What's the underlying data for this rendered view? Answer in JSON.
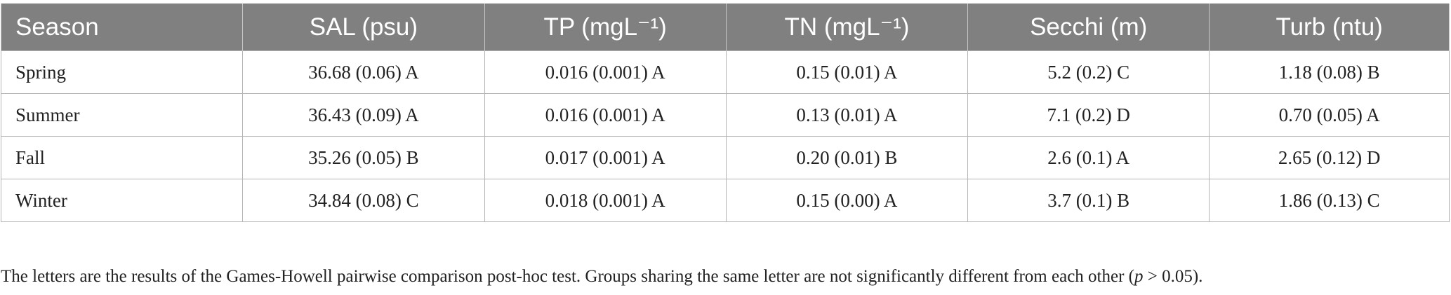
{
  "table": {
    "headers": [
      "Season",
      "SAL (psu)",
      "TP (mgL⁻¹)",
      "TN (mgL⁻¹)",
      "Secchi (m)",
      "Turb (ntu)"
    ],
    "rows": [
      [
        "Spring",
        "36.68 (0.06) A",
        "0.016 (0.001) A",
        "0.15 (0.01) A",
        "5.2 (0.2) C",
        "1.18 (0.08) B"
      ],
      [
        "Summer",
        "36.43 (0.09) A",
        "0.016 (0.001) A",
        "0.13 (0.01) A",
        "7.1 (0.2) D",
        "0.70 (0.05) A"
      ],
      [
        "Fall",
        "35.26 (0.05) B",
        "0.017 (0.001) A",
        "0.20 (0.01) B",
        "2.6 (0.1) A",
        "2.65 (0.12) D"
      ],
      [
        "Winter",
        "34.84 (0.08) C",
        "0.018 (0.001) A",
        "0.15 (0.00) A",
        "3.7 (0.1) B",
        "1.86 (0.13) C"
      ]
    ]
  },
  "footnote": {
    "text_before": "The letters are the results of the Games-Howell pairwise comparison post-hoc test. Groups sharing the same letter are not significantly different from each other (",
    "p_symbol": "p",
    "text_after": " > 0.05)."
  }
}
